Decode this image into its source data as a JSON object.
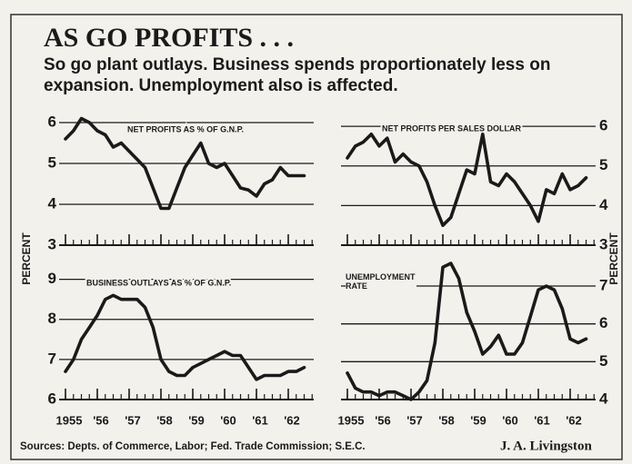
{
  "title": "AS GO PROFITS . . .",
  "subtitle": "So go plant outlays. Business spends proportionately less on expansion. Unemployment also is affected.",
  "axis_label": "PERCENT",
  "source": "Sources: Depts. of Commerce, Labor; Fed. Trade Commission; S.E.C.",
  "byline": "J. A. Livingston",
  "chart_data": [
    {
      "type": "line",
      "title": "NET PROFITS AS % OF G.N.P.",
      "color": "#1a1a1a",
      "yaxis_side": "left",
      "x": [
        1955,
        1955.25,
        1955.5,
        1955.75,
        1956,
        1956.25,
        1956.5,
        1956.75,
        1957,
        1957.25,
        1957.5,
        1957.75,
        1958,
        1958.25,
        1958.5,
        1958.75,
        1959,
        1959.25,
        1959.5,
        1959.75,
        1960,
        1960.25,
        1960.5,
        1960.75,
        1961,
        1961.25,
        1961.5,
        1961.75,
        1962,
        1962.25,
        1962.5
      ],
      "values": [
        5.6,
        5.8,
        6.1,
        6.0,
        5.8,
        5.7,
        5.4,
        5.5,
        5.3,
        5.1,
        4.9,
        4.4,
        3.9,
        3.9,
        4.4,
        4.9,
        5.2,
        5.5,
        5.0,
        4.9,
        5.0,
        4.7,
        4.4,
        4.35,
        4.2,
        4.5,
        4.6,
        4.9,
        4.7,
        4.7,
        4.7
      ],
      "xlim": [
        1954.8,
        1962.8
      ],
      "xticks": [
        1955,
        1956,
        1957,
        1958,
        1959,
        1960,
        1961,
        1962
      ],
      "ylim": [
        3,
        6.2
      ],
      "yticks": [
        3,
        4,
        5,
        6
      ]
    },
    {
      "type": "line",
      "title": "NET PROFITS PER SALES DOLLAR",
      "color": "#1a1a1a",
      "yaxis_side": "right",
      "x": [
        1955,
        1955.25,
        1955.5,
        1955.75,
        1956,
        1956.25,
        1956.5,
        1956.75,
        1957,
        1957.25,
        1957.5,
        1957.75,
        1958,
        1958.25,
        1958.5,
        1958.75,
        1959,
        1959.25,
        1959.5,
        1959.75,
        1960,
        1960.25,
        1960.5,
        1960.75,
        1961,
        1961.25,
        1961.5,
        1961.75,
        1962,
        1962.25,
        1962.5
      ],
      "values": [
        5.2,
        5.5,
        5.6,
        5.8,
        5.5,
        5.7,
        5.1,
        5.3,
        5.1,
        5.0,
        4.6,
        4.0,
        3.5,
        3.7,
        4.3,
        4.9,
        4.8,
        5.8,
        4.6,
        4.5,
        4.8,
        4.6,
        4.3,
        4.0,
        3.6,
        4.4,
        4.3,
        4.8,
        4.4,
        4.5,
        4.7
      ],
      "xlim": [
        1954.8,
        1962.8
      ],
      "xticks": [
        1955,
        1956,
        1957,
        1958,
        1959,
        1960,
        1961,
        1962
      ],
      "ylim": [
        3,
        6.3
      ],
      "yticks": [
        3,
        4,
        5,
        6
      ]
    },
    {
      "type": "line",
      "title": "BUSINESS OUTLAYS AS % OF G.N.P.",
      "color": "#1a1a1a",
      "yaxis_side": "left",
      "x": [
        1955,
        1955.25,
        1955.5,
        1955.75,
        1956,
        1956.25,
        1956.5,
        1956.75,
        1957,
        1957.25,
        1957.5,
        1957.75,
        1958,
        1958.25,
        1958.5,
        1958.75,
        1959,
        1959.25,
        1959.5,
        1959.75,
        1960,
        1960.25,
        1960.5,
        1960.75,
        1961,
        1961.25,
        1961.5,
        1961.75,
        1962,
        1962.25,
        1962.5
      ],
      "values": [
        6.7,
        7.0,
        7.5,
        7.8,
        8.1,
        8.5,
        8.6,
        8.5,
        8.5,
        8.5,
        8.3,
        7.8,
        7.0,
        6.7,
        6.6,
        6.6,
        6.8,
        6.9,
        7.0,
        7.1,
        7.2,
        7.1,
        7.1,
        6.8,
        6.5,
        6.6,
        6.6,
        6.6,
        6.7,
        6.7,
        6.8
      ],
      "xlim": [
        1954.8,
        1962.8
      ],
      "xticks": [
        {
          "value": 1955,
          "label": "1955"
        },
        {
          "value": 1956,
          "label": "'56"
        },
        {
          "value": 1957,
          "label": "'57"
        },
        {
          "value": 1958,
          "label": "'58"
        },
        {
          "value": 1959,
          "label": "'59"
        },
        {
          "value": 1960,
          "label": "'60"
        },
        {
          "value": 1961,
          "label": "'61"
        },
        {
          "value": 1962,
          "label": "'62"
        }
      ],
      "ylim": [
        6,
        9.4
      ],
      "yticks": [
        6,
        7,
        8,
        9
      ]
    },
    {
      "type": "line",
      "title": "UNEMPLOYMENT RATE",
      "color": "#1a1a1a",
      "yaxis_side": "right",
      "x": [
        1955,
        1955.25,
        1955.5,
        1955.75,
        1956,
        1956.25,
        1956.5,
        1956.75,
        1957,
        1957.25,
        1957.5,
        1957.75,
        1958,
        1958.25,
        1958.5,
        1958.75,
        1959,
        1959.25,
        1959.5,
        1959.75,
        1960,
        1960.25,
        1960.5,
        1960.75,
        1961,
        1961.25,
        1961.5,
        1961.75,
        1962,
        1962.25,
        1962.5
      ],
      "values": [
        4.7,
        4.3,
        4.2,
        4.2,
        4.1,
        4.2,
        4.2,
        4.1,
        4.0,
        4.2,
        4.5,
        5.5,
        7.5,
        7.6,
        7.2,
        6.3,
        5.8,
        5.2,
        5.4,
        5.7,
        5.2,
        5.2,
        5.5,
        6.2,
        6.9,
        7.0,
        6.9,
        6.4,
        5.6,
        5.5,
        5.6
      ],
      "xlim": [
        1954.8,
        1962.8
      ],
      "xticks": [
        {
          "value": 1955,
          "label": "1955"
        },
        {
          "value": 1956,
          "label": "'56"
        },
        {
          "value": 1957,
          "label": "'57"
        },
        {
          "value": 1958,
          "label": "'58"
        },
        {
          "value": 1959,
          "label": "'59"
        },
        {
          "value": 1960,
          "label": "'60"
        },
        {
          "value": 1961,
          "label": "'61"
        },
        {
          "value": 1962,
          "label": "'62"
        }
      ],
      "ylim": [
        4,
        7.6
      ],
      "yticks": [
        4,
        5,
        6,
        7
      ]
    }
  ]
}
